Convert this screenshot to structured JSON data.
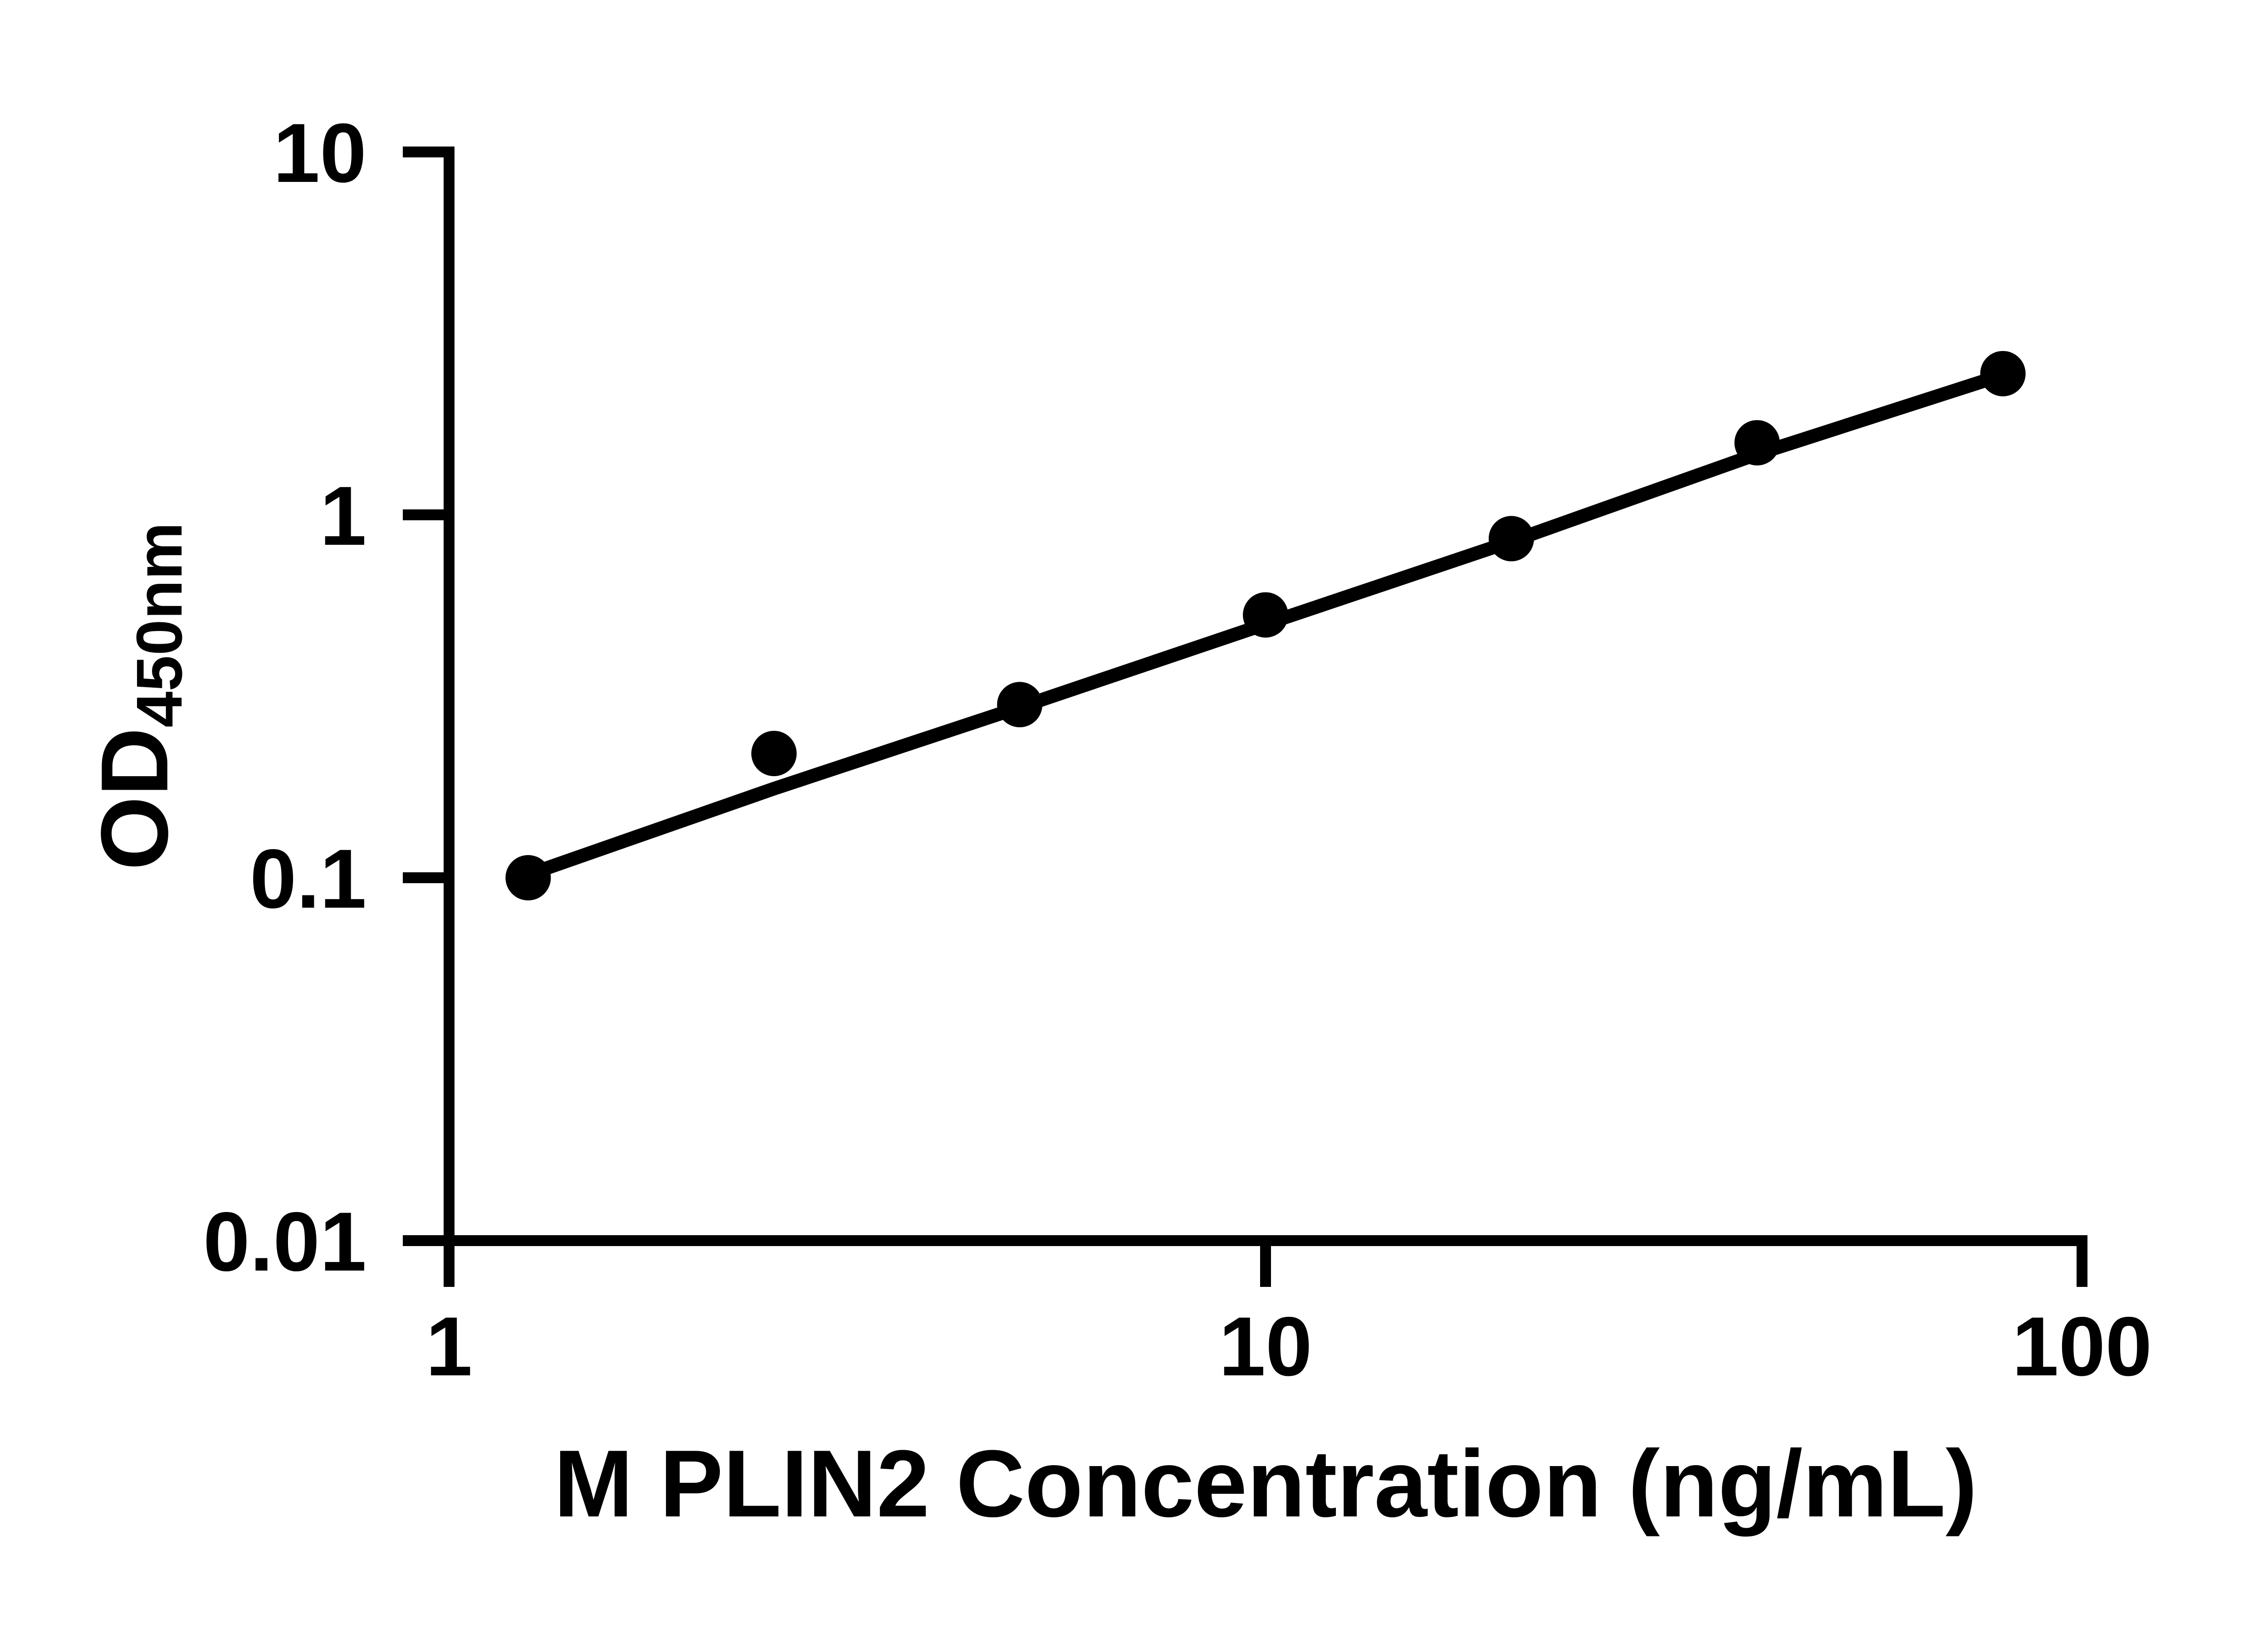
{
  "figure": {
    "background_color": "#ffffff",
    "axis_color": "#000000",
    "x_axis_title": "M PLIN2 Concentration (ng/mL)",
    "y_axis_title_main": "OD",
    "y_axis_title_sub": "450nm"
  },
  "chart_data": {
    "type": "scatter",
    "title": "",
    "xlabel": "M PLIN2 Concentration (ng/mL)",
    "ylabel": "OD450nm",
    "x_scale": "log10",
    "y_scale": "log10",
    "xlim": [
      1,
      100
    ],
    "ylim": [
      0.01,
      10
    ],
    "x_ticks": [
      1,
      10,
      100
    ],
    "y_ticks": [
      10,
      1,
      0.1,
      0.01
    ],
    "grid": false,
    "legend": false,
    "marker_color": "#000000",
    "line_color": "#000000",
    "points": [
      {
        "x": 1.25,
        "y": 0.1
      },
      {
        "x": 2.5,
        "y": 0.22
      },
      {
        "x": 5,
        "y": 0.3
      },
      {
        "x": 10,
        "y": 0.53
      },
      {
        "x": 20,
        "y": 0.86
      },
      {
        "x": 40,
        "y": 1.58
      },
      {
        "x": 80,
        "y": 2.45
      }
    ],
    "fit_line_points": [
      {
        "x": 1.25,
        "y": 0.102
      },
      {
        "x": 2.5,
        "y": 0.176
      },
      {
        "x": 5,
        "y": 0.295
      },
      {
        "x": 10,
        "y": 0.5
      },
      {
        "x": 20,
        "y": 0.845
      },
      {
        "x": 40,
        "y": 1.47
      },
      {
        "x": 80,
        "y": 2.43
      }
    ]
  }
}
